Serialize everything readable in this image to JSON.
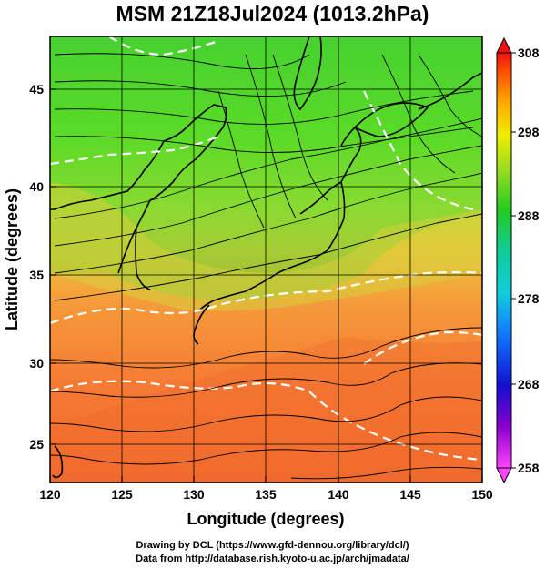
{
  "title": "MSM 21Z18Jul2024 (1013.2hPa)",
  "x_axis": {
    "label": "Longitude (degrees)",
    "ticks": [
      "120",
      "125",
      "130",
      "135",
      "140",
      "145",
      "150"
    ],
    "range": [
      120,
      150
    ]
  },
  "y_axis": {
    "label": "Latitude  (degrees)",
    "ticks": [
      "25",
      "30",
      "35",
      "40",
      "45"
    ],
    "range": [
      22.4,
      47.6
    ]
  },
  "colorbar": {
    "ticks": [
      "308",
      "298",
      "288",
      "278",
      "268",
      "258"
    ],
    "min": 258,
    "max": 308
  },
  "credits": {
    "line1": "Drawing by DCL (https://www.gfd-dennou.org/library/dcl/)",
    "line2": "Data from http://database.rish.kyoto-u.ac.jp/arch/jmadata/"
  },
  "colors": {
    "cold": "#33cc33",
    "mid": "#cccc33",
    "warm": "#ff6633",
    "contour": "#ffffff",
    "streamline": "#000000"
  }
}
